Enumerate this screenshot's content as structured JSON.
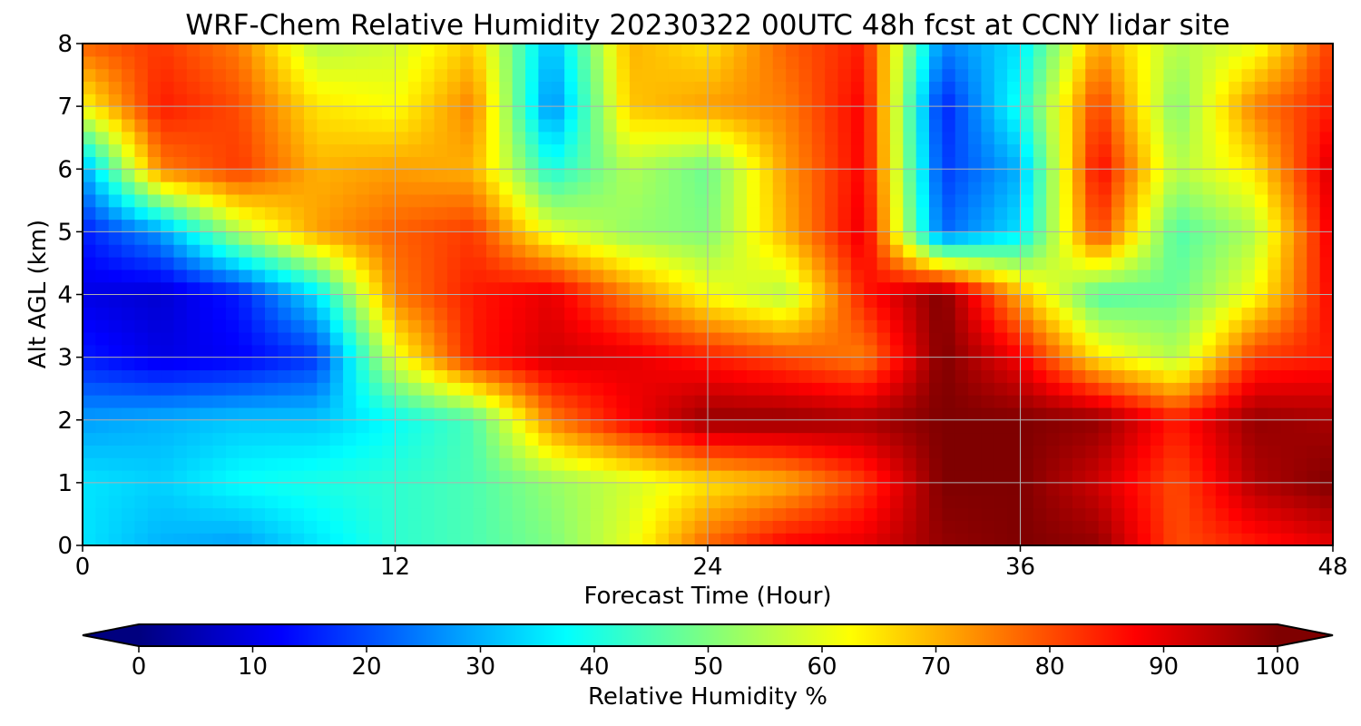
{
  "chart_data": {
    "type": "heatmap",
    "title": "WRF-Chem Relative Humidity 20230322 00UTC 48h fcst at CCNY lidar site",
    "xlabel": "Forecast Time (Hour)",
    "ylabel": "Alt AGL (km)",
    "xlim": [
      0,
      48
    ],
    "ylim": [
      0,
      8
    ],
    "xticks": [
      "0",
      "12",
      "24",
      "36",
      "48"
    ],
    "yticks": [
      "0",
      "1",
      "2",
      "3",
      "4",
      "5",
      "6",
      "7",
      "8"
    ],
    "grid": true,
    "colormap": "jet",
    "colorbar": {
      "label": "Relative Humidity %",
      "range": [
        0,
        100
      ],
      "ticks": [
        "0",
        "10",
        "20",
        "30",
        "40",
        "50",
        "60",
        "70",
        "80",
        "90",
        "100"
      ],
      "extend": "both",
      "colors": [
        "#00007f",
        "#0000ff",
        "#007fff",
        "#00ffff",
        "#7fff7f",
        "#ffff00",
        "#ff7f00",
        "#ff0000",
        "#7f0000"
      ]
    },
    "x_hours": [
      0,
      3,
      6,
      9,
      12,
      15,
      18,
      21,
      24,
      27,
      30,
      33,
      36,
      39,
      42,
      45,
      48
    ],
    "y_km": [
      0,
      1,
      2,
      3,
      4,
      5,
      6,
      7,
      8
    ],
    "values": [
      [
        35,
        30,
        28,
        35,
        42,
        45,
        50,
        60,
        78,
        88,
        90,
        98,
        100,
        98,
        80,
        85,
        90
      ],
      [
        35,
        33,
        38,
        40,
        42,
        45,
        52,
        58,
        65,
        70,
        82,
        100,
        100,
        92,
        80,
        95,
        100
      ],
      [
        28,
        30,
        32,
        32,
        38,
        45,
        75,
        88,
        98,
        98,
        96,
        100,
        100,
        98,
        85,
        98,
        96
      ],
      [
        15,
        10,
        12,
        18,
        60,
        85,
        92,
        90,
        85,
        80,
        75,
        100,
        88,
        65,
        55,
        82,
        85
      ],
      [
        10,
        8,
        15,
        35,
        75,
        85,
        90,
        75,
        62,
        55,
        85,
        100,
        70,
        45,
        48,
        62,
        88
      ],
      [
        15,
        28,
        55,
        72,
        78,
        82,
        60,
        52,
        50,
        70,
        90,
        22,
        35,
        82,
        45,
        55,
        90
      ],
      [
        28,
        75,
        82,
        70,
        72,
        70,
        40,
        55,
        48,
        72,
        88,
        18,
        30,
        88,
        55,
        65,
        92
      ],
      [
        62,
        85,
        80,
        65,
        62,
        75,
        25,
        68,
        72,
        75,
        88,
        15,
        40,
        82,
        50,
        75,
        85
      ],
      [
        78,
        82,
        75,
        55,
        58,
        68,
        30,
        70,
        65,
        78,
        85,
        25,
        35,
        72,
        55,
        60,
        82
      ]
    ]
  }
}
